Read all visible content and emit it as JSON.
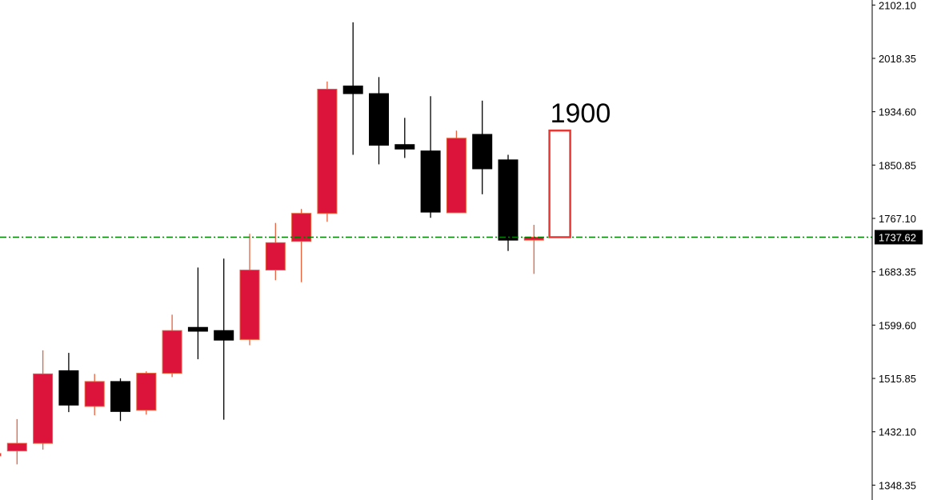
{
  "chart_data": {
    "type": "candlestick",
    "title": "",
    "xlabel": "",
    "ylabel": "",
    "ylim": [
      1325,
      2110
    ],
    "y_tick_labels": [
      "2102.10",
      "2018.35",
      "1934.60",
      "1850.85",
      "1767.10",
      "1683.35",
      "1599.60",
      "1515.85",
      "1432.10",
      "1348.35"
    ],
    "current_price": "1737.62",
    "colors": {
      "bull": "#dc143c",
      "bear": "#000000",
      "wick_bull": "#e8603c",
      "wick_bear": "#000000",
      "level_line": "#008000",
      "target_box": "#e53935",
      "price_tag_bg": "#000000"
    },
    "candles": [
      {
        "open": 1398,
        "high": 1445,
        "low": 1377,
        "close": 1398,
        "dir": "up"
      },
      {
        "open": 1402,
        "high": 1452,
        "low": 1381,
        "close": 1414,
        "dir": "up"
      },
      {
        "open": 1414,
        "high": 1560,
        "low": 1404,
        "close": 1523,
        "dir": "up"
      },
      {
        "open": 1528,
        "high": 1556,
        "low": 1463,
        "close": 1474,
        "dir": "down"
      },
      {
        "open": 1472,
        "high": 1523,
        "low": 1458,
        "close": 1511,
        "dir": "up"
      },
      {
        "open": 1511,
        "high": 1516,
        "low": 1449,
        "close": 1464,
        "dir": "down"
      },
      {
        "open": 1466,
        "high": 1527,
        "low": 1459,
        "close": 1524,
        "dir": "up"
      },
      {
        "open": 1524,
        "high": 1616,
        "low": 1518,
        "close": 1591,
        "dir": "up"
      },
      {
        "open": 1596,
        "high": 1690,
        "low": 1546,
        "close": 1590,
        "dir": "down"
      },
      {
        "open": 1591,
        "high": 1704,
        "low": 1451,
        "close": 1576,
        "dir": "down"
      },
      {
        "open": 1577,
        "high": 1743,
        "low": 1568,
        "close": 1686,
        "dir": "up"
      },
      {
        "open": 1686,
        "high": 1760,
        "low": 1670,
        "close": 1729,
        "dir": "up"
      },
      {
        "open": 1731,
        "high": 1782,
        "low": 1667,
        "close": 1775,
        "dir": "up"
      },
      {
        "open": 1775,
        "high": 1982,
        "low": 1762,
        "close": 1970,
        "dir": "up"
      },
      {
        "open": 1975,
        "high": 2075,
        "low": 1867,
        "close": 1963,
        "dir": "down"
      },
      {
        "open": 1963,
        "high": 1989,
        "low": 1852,
        "close": 1882,
        "dir": "down"
      },
      {
        "open": 1883,
        "high": 1925,
        "low": 1862,
        "close": 1876,
        "dir": "down"
      },
      {
        "open": 1873,
        "high": 1959,
        "low": 1768,
        "close": 1777,
        "dir": "down"
      },
      {
        "open": 1776,
        "high": 1905,
        "low": 1776,
        "close": 1893,
        "dir": "up"
      },
      {
        "open": 1899,
        "high": 1952,
        "low": 1805,
        "close": 1845,
        "dir": "down"
      },
      {
        "open": 1859,
        "high": 1867,
        "low": 1716,
        "close": 1733,
        "dir": "down"
      },
      {
        "open": 1733,
        "high": 1757,
        "low": 1680,
        "close": 1737.6,
        "dir": "up"
      }
    ],
    "target_box": {
      "bottom": 1737.62,
      "top": 1905
    },
    "annotation": "1900"
  }
}
